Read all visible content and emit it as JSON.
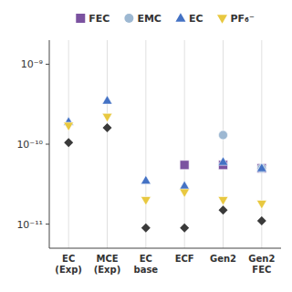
{
  "chart_data": {
    "type": "scatter",
    "categories": [
      "EC\n(Exp)",
      "MCE\n(Exp)",
      "EC\nbase",
      "ECF",
      "Gen2",
      "Gen2\nFEC"
    ],
    "series": [
      {
        "name": "FEC",
        "color": "#7B52A0",
        "marker": "square",
        "values": [
          null,
          null,
          null,
          5.5e-11,
          5.5e-11,
          5e-11
        ]
      },
      {
        "name": "EMC",
        "color": "#9DB8D2",
        "marker": "circle",
        "values": [
          null,
          null,
          null,
          null,
          1.3e-10,
          5e-11
        ]
      },
      {
        "name": "EC",
        "color": "#4472C4",
        "marker": "triangle-up",
        "values": [
          1.9e-10,
          3.5e-10,
          3.5e-11,
          3e-11,
          6e-11,
          5e-11
        ]
      },
      {
        "name": "PF₆⁻",
        "color": "#E8C840",
        "marker": "triangle-down",
        "values": [
          1.7e-10,
          2.2e-10,
          2e-11,
          2.5e-11,
          2e-11,
          1.8e-11
        ]
      },
      {
        "color": "#3A3A3A",
        "marker": "diamond",
        "values": [
          1.05e-10,
          1.6e-10,
          9e-12,
          9e-12,
          1.5e-11,
          1.1e-11
        ]
      }
    ],
    "log": "y",
    "ylim": [
      5e-12,
      2e-09
    ],
    "yticks": [
      {
        "value": 1e-11,
        "label": "10⁻¹¹"
      },
      {
        "value": 1e-10,
        "label": "10⁻¹⁰"
      },
      {
        "value": 1e-09,
        "label": "10⁻⁹"
      }
    ],
    "grid": true,
    "legend": "top"
  }
}
